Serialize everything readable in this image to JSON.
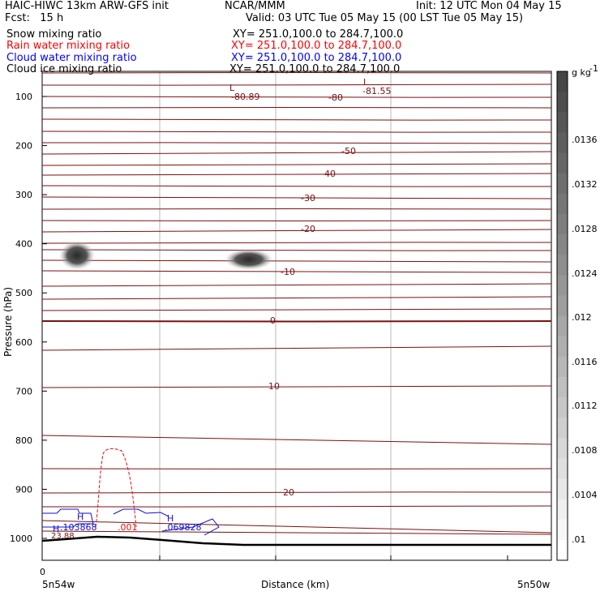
{
  "header": {
    "left_line1": "HAIC-HIWC 13km ARW-GFS init",
    "center_line1": "NCAR/MMM",
    "right_line1": "Init: 12 UTC Mon 04 May 15",
    "left_line2": "Fcst:   15 h",
    "right_line2": "Valid: 03 UTC Tue 05 May 15 (00 LST Tue 05 May 15)"
  },
  "fields": [
    {
      "name": "Snow mixing ratio",
      "xy": "XY= 251.0,100.0 to 284.7,100.0",
      "color": "#000000"
    },
    {
      "name": "Rain water mixing ratio",
      "xy": "XY= 251.0,100.0 to 284.7,100.0",
      "color": "#ff0000"
    },
    {
      "name": "Cloud water mixing ratio",
      "xy": "XY= 251.0,100.0 to 284.7,100.0",
      "color": "#0000ff"
    },
    {
      "name": "Cloud ice mixing ratio",
      "xy": "XY= 251.0,100.0 to 284.7,100.0",
      "color": "#000000"
    }
  ],
  "chart_data": {
    "type": "contour",
    "ylabel": "Pressure (hPa)",
    "xlabel": "Distance (km)",
    "x_tick_labels": [
      "0"
    ],
    "x_start_label": "5n54w",
    "x_end_label": "5n50w",
    "y_ticks": [
      100,
      200,
      300,
      400,
      500,
      600,
      700,
      800,
      900,
      1000
    ],
    "ylim": [
      1050,
      0
    ],
    "colorbar": {
      "unit": "g kg",
      "unit_exp": "-1",
      "labels": [
        ".0136",
        ".0132",
        ".0128",
        ".0124",
        ".012",
        ".0116",
        ".0112",
        ".0108",
        ".0104",
        ".01"
      ]
    },
    "temperature_contour_labels": [
      "-80.89",
      "-80",
      "-81.55",
      "-50",
      "-40",
      "-30",
      "-20",
      "-10",
      "0",
      "10",
      "20",
      "23.88"
    ],
    "markers": [
      "L",
      "L",
      "H",
      "H",
      "H"
    ],
    "cloud_water_labels": [
      ".103868",
      ".069828"
    ],
    "rain_label": ".001",
    "colors": {
      "temperature": "#7a1010",
      "rain": "#e01010",
      "cloud_water": "#1010d0",
      "terrain": "#000000"
    }
  }
}
